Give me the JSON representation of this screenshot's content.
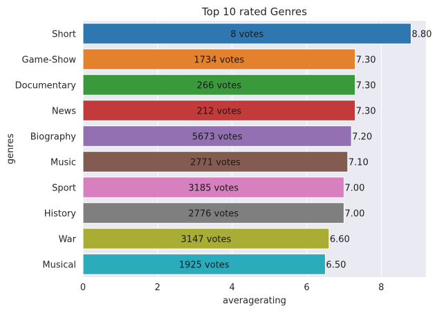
{
  "chart_data": {
    "type": "bar",
    "orientation": "horizontal",
    "title": "Top 10 rated Genres",
    "xlabel": "averagerating",
    "ylabel": "genres",
    "xlim": [
      0,
      9.2
    ],
    "xticks": [
      0,
      2,
      4,
      6,
      8
    ],
    "grid": true,
    "categories": [
      "Short",
      "Game-Show",
      "Documentary",
      "News",
      "Biography",
      "Music",
      "Sport",
      "History",
      "War",
      "Musical"
    ],
    "values": [
      8.8,
      7.3,
      7.3,
      7.3,
      7.2,
      7.1,
      7.0,
      7.0,
      6.6,
      6.5
    ],
    "value_labels": [
      "8.80",
      "7.30",
      "7.30",
      "7.30",
      "7.20",
      "7.10",
      "7.00",
      "7.00",
      "6.60",
      "6.50"
    ],
    "bar_labels": [
      "8 votes",
      "1734 votes",
      "266 votes",
      "212 votes",
      "5673 votes",
      "2771 votes",
      "3185 votes",
      "2776 votes",
      "3147 votes",
      "1925 votes"
    ],
    "colors": [
      "#2f77b0",
      "#e3812d",
      "#3a9a3b",
      "#c23a3a",
      "#9270b2",
      "#845b51",
      "#d77fbf",
      "#7f7f7f",
      "#a9ad34",
      "#2aacbd"
    ],
    "background": "#eaeaf2",
    "grid_color": "#ffffff"
  }
}
